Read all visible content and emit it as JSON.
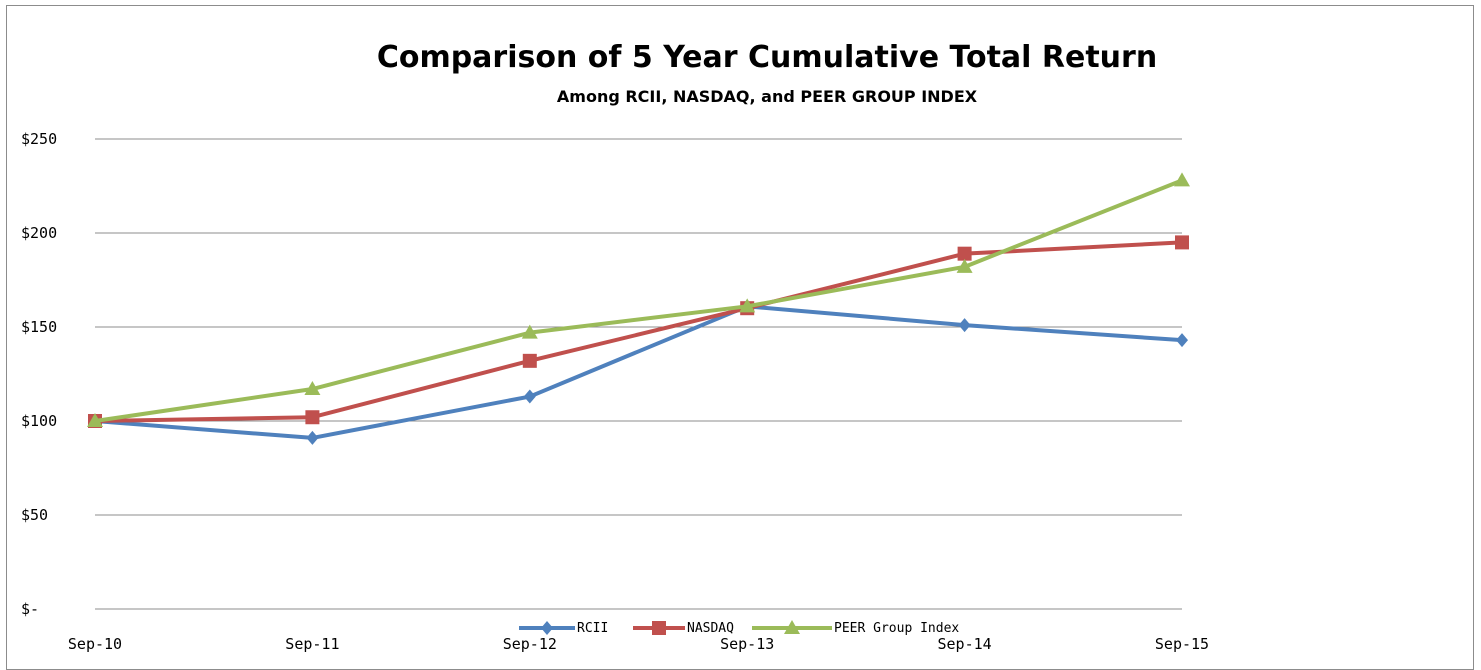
{
  "chart_data": {
    "type": "line",
    "title": "Comparison of 5 Year Cumulative Total Return",
    "subtitle": "Among RCII, NASDAQ, and PEER GROUP INDEX",
    "xlabel": "",
    "ylabel": "",
    "categories": [
      "Sep-10",
      "Sep-11",
      "Sep-12",
      "Sep-13",
      "Sep-14",
      "Sep-15"
    ],
    "ylim": [
      0,
      250
    ],
    "yticks": [
      0,
      50,
      100,
      150,
      200,
      250
    ],
    "ytick_labels": [
      "$-",
      "$50",
      "$100",
      "$150",
      "$200",
      "$250"
    ],
    "grid": true,
    "legend_position": "bottom",
    "series": [
      {
        "name": "RCII",
        "color": "#4f81bd",
        "marker": "diamond",
        "values": [
          100,
          91,
          113,
          161,
          151,
          143
        ]
      },
      {
        "name": "NASDAQ",
        "color": "#c0504d",
        "marker": "square",
        "values": [
          100,
          102,
          132,
          160,
          189,
          195
        ]
      },
      {
        "name": "PEER Group Index",
        "color": "#9bbb59",
        "marker": "triangle",
        "values": [
          100,
          117,
          147,
          161,
          182,
          228
        ]
      }
    ]
  }
}
